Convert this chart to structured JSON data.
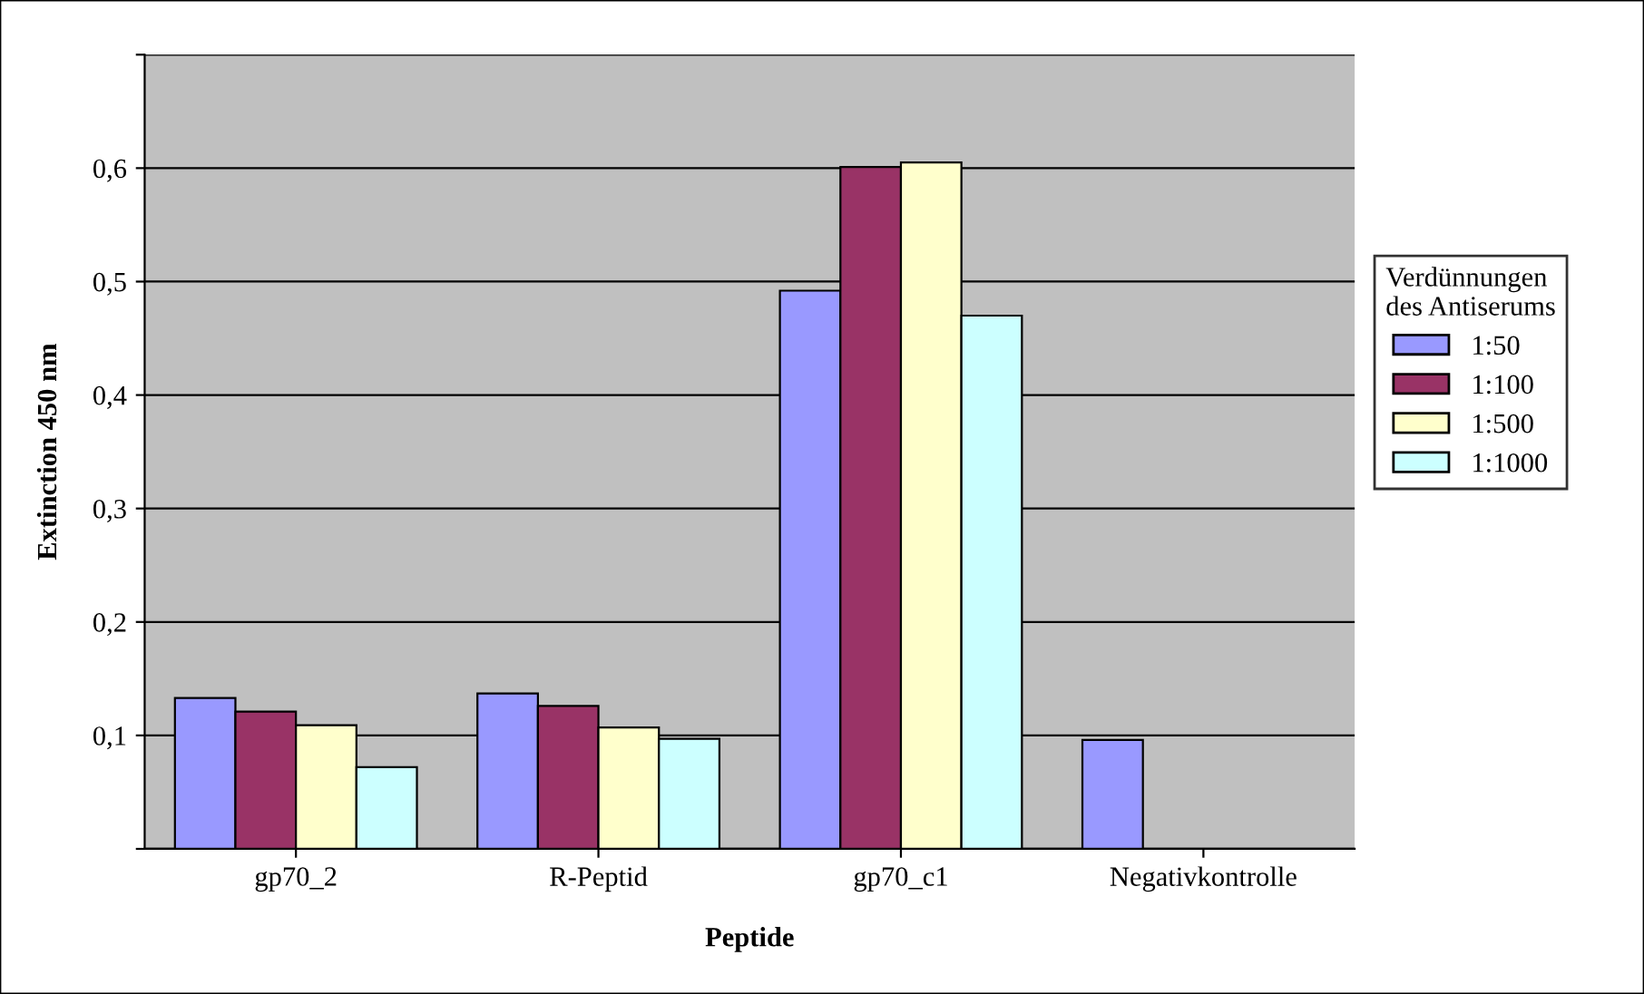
{
  "chart_data": {
    "type": "bar",
    "xlabel": "Peptide",
    "ylabel": "Extinction 450 nm",
    "legend_title": "Verdünnungen\ndes Antiserums",
    "categories": [
      "gp70_2",
      "R-Peptid",
      "gp70_c1",
      "Negativkontrolle"
    ],
    "series": [
      {
        "name": "1:50",
        "color": "#9999ff",
        "values": [
          0.133,
          0.137,
          0.492,
          0.096
        ]
      },
      {
        "name": "1:100",
        "color": "#993366",
        "values": [
          0.121,
          0.126,
          0.601,
          null
        ]
      },
      {
        "name": "1:500",
        "color": "#ffffcc",
        "values": [
          0.109,
          0.107,
          0.605,
          null
        ]
      },
      {
        "name": "1:1000",
        "color": "#ccffff",
        "values": [
          0.072,
          0.097,
          0.47,
          null
        ]
      }
    ],
    "ylim": [
      0,
      0.7
    ],
    "yticks": [
      {
        "value": 0,
        "label": null
      },
      {
        "value": 0.1,
        "label": "0,1"
      },
      {
        "value": 0.2,
        "label": "0,2"
      },
      {
        "value": 0.3,
        "label": "0,3"
      },
      {
        "value": 0.4,
        "label": "0,4"
      },
      {
        "value": 0.5,
        "label": "0,5"
      },
      {
        "value": 0.6,
        "label": "0,6"
      },
      {
        "value": 0.7,
        "label": null
      }
    ],
    "grid": "y",
    "legend": "right"
  }
}
